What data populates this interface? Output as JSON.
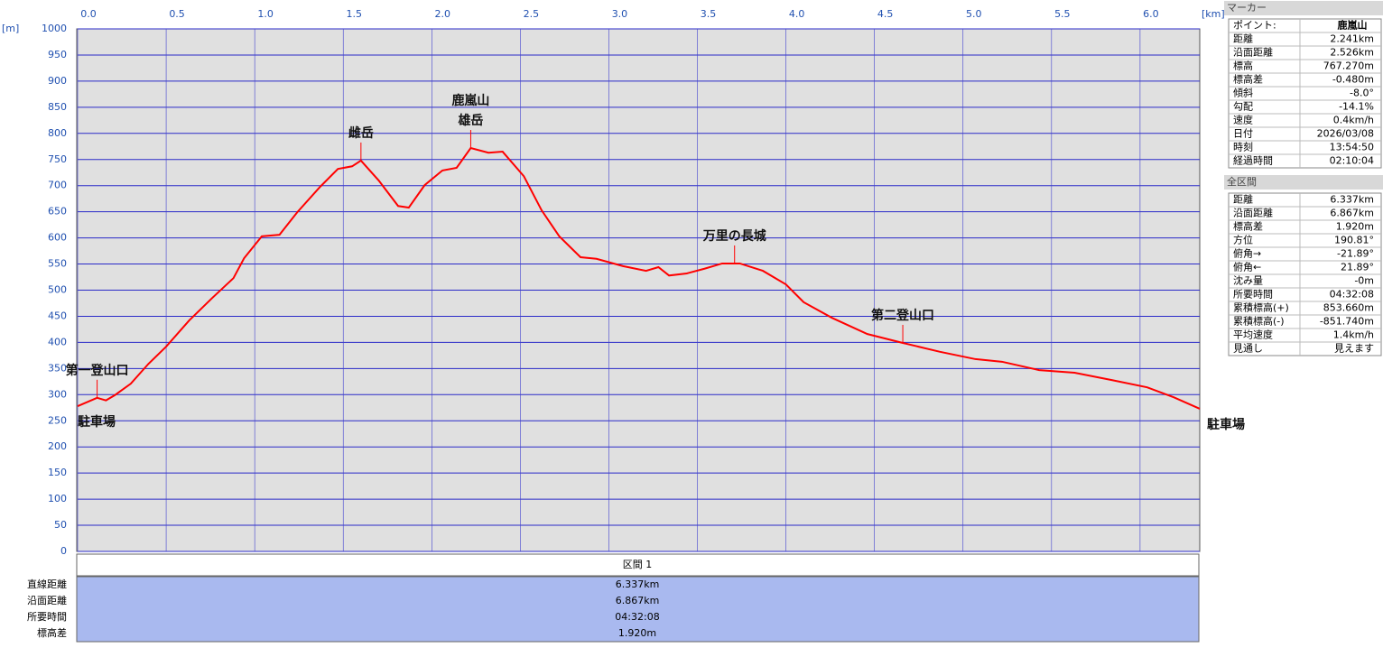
{
  "chart_data": {
    "type": "line",
    "x_label": "[km]",
    "y_label": "[m]",
    "x": [
      0,
      0.11,
      0.16,
      0.21,
      0.3,
      0.4,
      0.5,
      0.63,
      0.76,
      0.88,
      0.94,
      1.04,
      1.14,
      1.24,
      1.37,
      1.47,
      1.55,
      1.6,
      1.7,
      1.81,
      1.87,
      1.96,
      2.06,
      2.14,
      2.22,
      2.32,
      2.4,
      2.52,
      2.62,
      2.72,
      2.84,
      2.93,
      3.08,
      3.21,
      3.28,
      3.34,
      3.44,
      3.54,
      3.64,
      3.74,
      3.87,
      4.0,
      4.1,
      4.26,
      4.46,
      4.66,
      4.87,
      5.07,
      5.22,
      5.43,
      5.63,
      5.84,
      6.04,
      6.19,
      6.337
    ],
    "series": [
      {
        "color": "#ff0000",
        "values": [
          278,
          294,
          289,
          299,
          321,
          359,
          392,
          442,
          485,
          523,
          561,
          603,
          606,
          649,
          698,
          732,
          737,
          748,
          710,
          661,
          658,
          701,
          729,
          734,
          772,
          763,
          765,
          718,
          653,
          603,
          563,
          560,
          546,
          537,
          544,
          528,
          532,
          541,
          551,
          551,
          537,
          511,
          477,
          447,
          416,
          399,
          382,
          368,
          363,
          347,
          342,
          328,
          314,
          295,
          273
        ]
      }
    ],
    "xlim": [
      0,
      6.337
    ],
    "xticks": [
      {
        "value": 0,
        "label": "0.0"
      },
      0.5,
      {
        "value": 1,
        "label": "1.0"
      },
      1.5,
      {
        "value": 2,
        "label": "2.0"
      },
      2.5,
      {
        "value": 3,
        "label": "3.0"
      },
      3.5,
      {
        "value": 4,
        "label": "4.0"
      },
      4.5,
      {
        "value": 5,
        "label": "5.0"
      },
      5.5,
      {
        "value": 6,
        "label": "6.0"
      }
    ],
    "ylim": [
      0,
      1000
    ],
    "yticks": [
      0,
      50,
      100,
      150,
      200,
      250,
      300,
      350,
      400,
      450,
      500,
      550,
      600,
      650,
      700,
      750,
      800,
      850,
      900,
      950,
      1000
    ],
    "grid": true,
    "annotations": [
      {
        "lines": [
          "駐車場"
        ],
        "x": 0
      },
      {
        "lines": [
          "第一登山口"
        ],
        "x": 0.11
      },
      {
        "lines": [
          "雌岳"
        ],
        "x": 1.6
      },
      {
        "lines": [
          "鹿嵐山",
          "雄岳"
        ],
        "x": 2.22
      },
      {
        "lines": [
          "万里の長城"
        ],
        "x": 3.71
      },
      {
        "lines": [
          "第二登山口"
        ],
        "x": 4.66
      },
      {
        "lines": [
          "駐車場"
        ],
        "x": 6.337
      }
    ]
  },
  "marker_panel": {
    "title": "マーカー",
    "rows": [
      [
        "ポイント:",
        "鹿嵐山"
      ],
      [
        "距離",
        "2.241km"
      ],
      [
        "沿面距離",
        "2.526km"
      ],
      [
        "標高",
        "767.270m"
      ],
      [
        "標高差",
        "-0.480m"
      ],
      [
        "傾斜",
        "-8.0°"
      ],
      [
        "勾配",
        "-14.1%"
      ],
      [
        "速度",
        "0.4km/h"
      ],
      [
        "日付",
        "2026/03/08"
      ],
      [
        "時刻",
        "13:54:50"
      ],
      [
        "経過時間",
        "02:10:04"
      ]
    ]
  },
  "total_panel": {
    "title": "全区間",
    "rows": [
      [
        "距離",
        "6.337km"
      ],
      [
        "沿面距離",
        "6.867km"
      ],
      [
        "標高差",
        "1.920m"
      ],
      [
        "方位",
        "190.81°"
      ],
      [
        "俯角→",
        "-21.89°"
      ],
      [
        "俯角←",
        "21.89°"
      ],
      [
        "沈み量",
        "-0m"
      ],
      [
        "所要時間",
        "04:32:08"
      ],
      [
        "累積標高(+)",
        "853.660m"
      ],
      [
        "累積標高(-)",
        "-851.740m"
      ],
      [
        "平均速度",
        "1.4km/h"
      ],
      [
        "見通し",
        "見えます"
      ]
    ]
  },
  "section_table": {
    "title": "区間 1",
    "rows": [
      [
        "直線距離",
        "6.337km"
      ],
      [
        "沿面距離",
        "6.867km"
      ],
      [
        "所要時間",
        "04:32:08"
      ],
      [
        "標高差",
        "1.920m"
      ]
    ]
  }
}
